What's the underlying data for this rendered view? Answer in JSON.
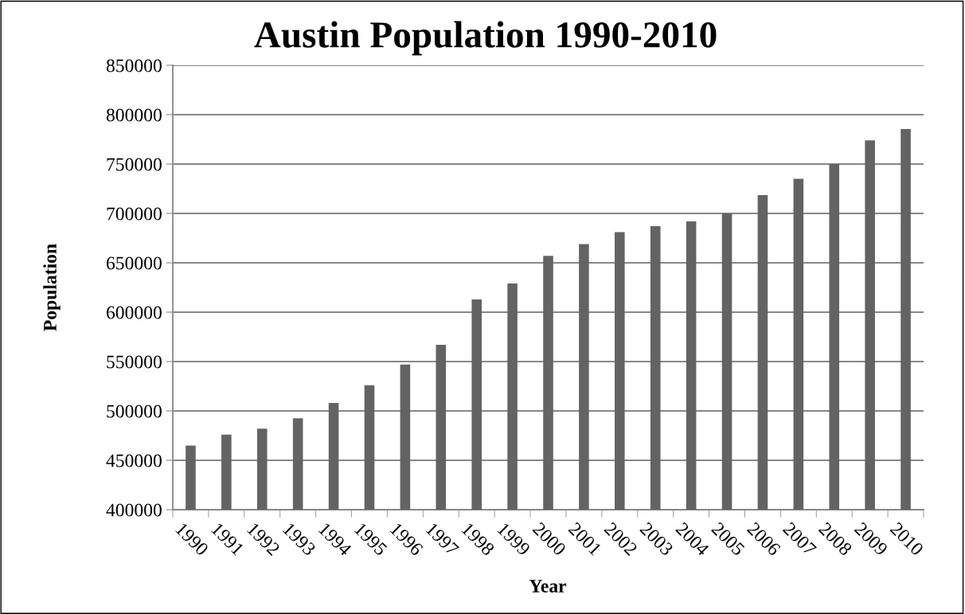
{
  "chart_data": {
    "type": "bar",
    "title": "Austin Population 1990-2010",
    "xlabel": "Year",
    "ylabel": "Population",
    "categories": [
      "1990",
      "1991",
      "1992",
      "1993",
      "1994",
      "1995",
      "1996",
      "1997",
      "1998",
      "1999",
      "2000",
      "2001",
      "2002",
      "2003",
      "2004",
      "2005",
      "2006",
      "2007",
      "2008",
      "2009",
      "2010"
    ],
    "values": [
      465000,
      476000,
      482000,
      492500,
      508000,
      526000,
      547000,
      567000,
      613000,
      629000,
      657000,
      669000,
      681000,
      687000,
      692000,
      700000,
      718500,
      735000,
      750000,
      774000,
      785500
    ],
    "color": "#636363",
    "ylim": [
      400000,
      850000
    ],
    "yticks": [
      400000,
      450000,
      500000,
      550000,
      600000,
      650000,
      700000,
      750000,
      800000,
      850000
    ],
    "grid": "y",
    "legend": false
  }
}
